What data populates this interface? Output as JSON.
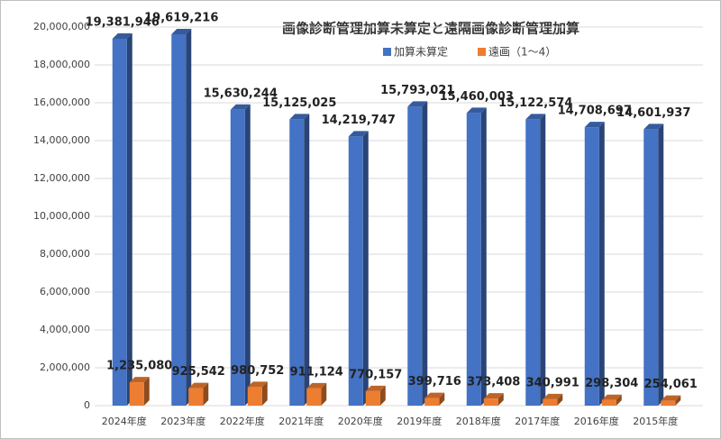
{
  "chart_data": {
    "type": "bar3d",
    "title": "画像診断管理加算未算定と遠隔画像診断管理加算",
    "categories": [
      "2024年度",
      "2023年度",
      "2022年度",
      "2021年度",
      "2020年度",
      "2019年度",
      "2018年度",
      "2017年度",
      "2016年度",
      "2015年度"
    ],
    "series": [
      {
        "name": "加算未算定",
        "color": "#4472c4",
        "values": [
          19381946,
          19619216,
          15630244,
          15125025,
          14219747,
          15793021,
          15460003,
          15122574,
          14708697,
          14601937
        ],
        "value_labels": [
          "19,381,946",
          "19,619,216",
          "15,630,244",
          "15,125,025",
          "14,219,747",
          "15,793,021",
          "15,460,003",
          "15,122,574",
          "14,708,697",
          "14,601,937"
        ]
      },
      {
        "name": "遠画（1～4）",
        "color": "#ed7d31",
        "values": [
          1235080,
          925542,
          980752,
          911124,
          770157,
          399716,
          373408,
          340991,
          298304,
          254061
        ],
        "value_labels": [
          "1,235,080",
          "925,542",
          "980,752",
          "911,124",
          "770,157",
          "399,716",
          "373,408",
          "340,991",
          "298,304",
          "254,061"
        ]
      }
    ],
    "ylim": [
      0,
      20000000
    ],
    "yticks": [
      {
        "value": 0,
        "label": "0"
      },
      {
        "value": 2000000,
        "label": "2,000,000"
      },
      {
        "value": 4000000,
        "label": "4,000,000"
      },
      {
        "value": 6000000,
        "label": "6,000,000"
      },
      {
        "value": 8000000,
        "label": "8,000,000"
      },
      {
        "value": 10000000,
        "label": "10,000,000"
      },
      {
        "value": 12000000,
        "label": "12,000,000"
      },
      {
        "value": 14000000,
        "label": "14,000,000"
      },
      {
        "value": 16000000,
        "label": "16,000,000"
      },
      {
        "value": 18000000,
        "label": "18,000,000"
      },
      {
        "value": 20000000,
        "label": "20,000,000"
      }
    ],
    "grid": true
  }
}
